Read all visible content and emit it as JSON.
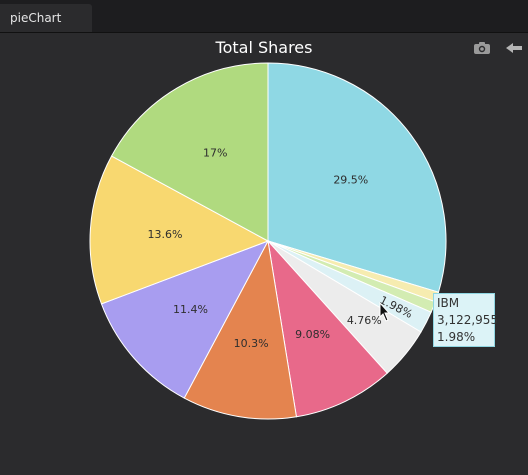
{
  "tabs": [
    {
      "label": "pieChart"
    }
  ],
  "toolbar": {
    "icons": [
      "camera-icon",
      "collapse-arrow-icon"
    ]
  },
  "chart_data": {
    "type": "pie",
    "title": "Total Shares",
    "slices": [
      {
        "value_pct": 29.5,
        "label": "29.5%",
        "color": "#8fd8e4"
      },
      {
        "value_pct": 0.9,
        "label": "",
        "color": "#f6ecb0"
      },
      {
        "value_pct": 1.0,
        "label": "",
        "color": "#d3ecb2"
      },
      {
        "value_pct": 1.98,
        "label": "1.98%",
        "color": "#dcf1f5"
      },
      {
        "value_pct": 4.76,
        "label": "4.76%",
        "color": "#ececec"
      },
      {
        "value_pct": 9.08,
        "label": "9.08%",
        "color": "#e8698a"
      },
      {
        "value_pct": 10.3,
        "label": "10.3%",
        "color": "#e4844f"
      },
      {
        "value_pct": 11.4,
        "label": "11.4%",
        "color": "#a89df0"
      },
      {
        "value_pct": 13.6,
        "label": "13.6%",
        "color": "#f8d870"
      },
      {
        "value_pct": 17,
        "label": "17%",
        "color": "#b0da7f"
      }
    ],
    "tooltip": {
      "name": "IBM",
      "value": "3,122,955",
      "percent": "1.98%"
    }
  }
}
